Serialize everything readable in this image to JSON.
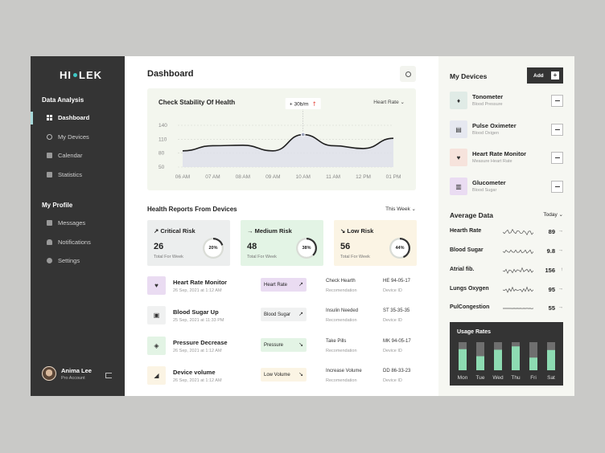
{
  "app": {
    "logo_left": "HI",
    "logo_right": "LEK"
  },
  "sidebar": {
    "section1": "Data Analysis",
    "nav1": [
      {
        "label": "Dashboard",
        "icon": "grid-icon",
        "active": true
      },
      {
        "label": "My Devices",
        "icon": "headset-icon"
      },
      {
        "label": "Calendar",
        "icon": "calendar-icon"
      },
      {
        "label": "Statistics",
        "icon": "chart-icon"
      }
    ],
    "section2": "My Profile",
    "nav2": [
      {
        "label": "Messages",
        "icon": "mail-icon"
      },
      {
        "label": "Notifications",
        "icon": "bell-icon"
      },
      {
        "label": "Settings",
        "icon": "gear-icon"
      }
    ],
    "user": {
      "name": "Anima Lee",
      "role": "Pro Account"
    }
  },
  "header": {
    "title": "Dashboard"
  },
  "stability": {
    "title": "Check Stability Of Health",
    "filter": "Heart Rate",
    "tooltip": "+ 30b/m",
    "y_ticks": [
      "140",
      "110",
      "80",
      "50"
    ],
    "x_ticks": [
      "06 AM",
      "07 AM",
      "08 AM",
      "09 AM",
      "10 AM",
      "11 AM",
      "12 PM",
      "01 PM"
    ]
  },
  "reports": {
    "title": "Health Reports From Devices",
    "filter": "This Week",
    "risks": [
      {
        "title": "Critical Risk",
        "value": "26",
        "sub": "Total For Week",
        "percent": "20%",
        "pct": 20,
        "bg": "#eceeee",
        "color": "#343434",
        "arrow": "↗"
      },
      {
        "title": "Medium Risk",
        "value": "48",
        "sub": "Total For Week",
        "percent": "38%",
        "pct": 38,
        "bg": "#e3f4e5",
        "color": "#343434",
        "arrow": "→"
      },
      {
        "title": "Low Risk",
        "value": "56",
        "sub": "Total For Week",
        "percent": "44%",
        "pct": 44,
        "bg": "#fbf4e4",
        "color": "#343434",
        "arrow": "↘"
      }
    ],
    "rows": [
      {
        "name": "Heart Rate Monitor",
        "date": "26 Sep, 2021 at 1:12 AM",
        "tag": "Heart Rate",
        "tag_bg": "#eadcf2",
        "icon_bg": "#eadcf2",
        "icon": "heart-icon",
        "arrow": "↗",
        "action": "Check Hearth",
        "action_sub": "Recomendation",
        "id": "HE 94-05-17",
        "id_sub": "Device ID"
      },
      {
        "name": "Blood Sugar Up",
        "date": "25 Sep, 2021 at 11:33 PM",
        "tag": "Blood Sugar",
        "tag_bg": "#f0f1f1",
        "icon_bg": "#f0f1f1",
        "icon": "sugar-icon",
        "arrow": "↗",
        "action": "Insulin Needed",
        "action_sub": "Recomendation",
        "id": "ST 35-35-35",
        "id_sub": "Device ID"
      },
      {
        "name": "Pressure Decrease",
        "date": "26 Sep, 2021 at 1:12 AM",
        "tag": "Pressure",
        "tag_bg": "#e3f4e5",
        "icon_bg": "#e3f4e5",
        "icon": "pressure-icon",
        "arrow": "↘",
        "action": "Take Pills",
        "action_sub": "Recomendation",
        "id": "MK 94-05-17",
        "id_sub": "Device ID"
      },
      {
        "name": "Device volume",
        "date": "26 Sep, 2021 at 1:12 AM",
        "tag": "Low Volume",
        "tag_bg": "#fbf4e4",
        "icon_bg": "#fbf4e4",
        "icon": "volume-icon",
        "arrow": "↘",
        "action": "Increase Volume",
        "action_sub": "Recomendation",
        "id": "DD 86-33-23",
        "id_sub": "Device ID"
      }
    ]
  },
  "devices": {
    "title": "My Devices",
    "add_label": "Add",
    "items": [
      {
        "name": "Tonometer",
        "sub": "Blood Pressure",
        "bg": "#e0ebe6",
        "icon": "drop-icon"
      },
      {
        "name": "Pulse Oximeter",
        "sub": "Blood Oxigen",
        "bg": "#e6e8f0",
        "icon": "oximeter-icon"
      },
      {
        "name": "Heart Rate Monitor",
        "sub": "Measure Heart Rate",
        "bg": "#f6e3dc",
        "icon": "heart-monitor-icon"
      },
      {
        "name": "Glucometer",
        "sub": "Blood Sugar",
        "bg": "#eadcf2",
        "icon": "glucometer-icon"
      }
    ]
  },
  "average": {
    "title": "Average Data",
    "filter": "Today",
    "items": [
      {
        "label": "Hearth Rate",
        "value": "89",
        "arrow": "→"
      },
      {
        "label": "Blood Sugar",
        "value": "9.8",
        "arrow": "→"
      },
      {
        "label": "Atrial fib.",
        "value": "156",
        "arrow": "↑"
      },
      {
        "label": "Lungs Oxygen",
        "value": "95",
        "arrow": "→"
      },
      {
        "label": "PulCongestion",
        "value": "55",
        "arrow": "→"
      }
    ]
  },
  "usage": {
    "title": "Usage Rates",
    "days": [
      "Mon",
      "Tue",
      "Wed",
      "Thu",
      "Fri",
      "Sat"
    ]
  },
  "chart_data": [
    {
      "type": "line",
      "title": "Check Stability Of Health",
      "x": [
        "06 AM",
        "07 AM",
        "08 AM",
        "09 AM",
        "10 AM",
        "11 AM",
        "12 PM",
        "01 PM"
      ],
      "ylim": [
        50,
        140
      ],
      "series": [
        {
          "name": "Heart Rate",
          "values": [
            85,
            96,
            97,
            85,
            120,
            96,
            90,
            112
          ]
        }
      ],
      "annotation": "+ 30b/m",
      "grid": true
    },
    {
      "type": "bar",
      "title": "Usage Rates",
      "categories": [
        "Mon",
        "Tue",
        "Wed",
        "Thu",
        "Fri",
        "Sat"
      ],
      "values": [
        0.75,
        0.5,
        0.73,
        0.85,
        0.45,
        0.72
      ],
      "ylim": [
        0,
        1
      ]
    }
  ]
}
